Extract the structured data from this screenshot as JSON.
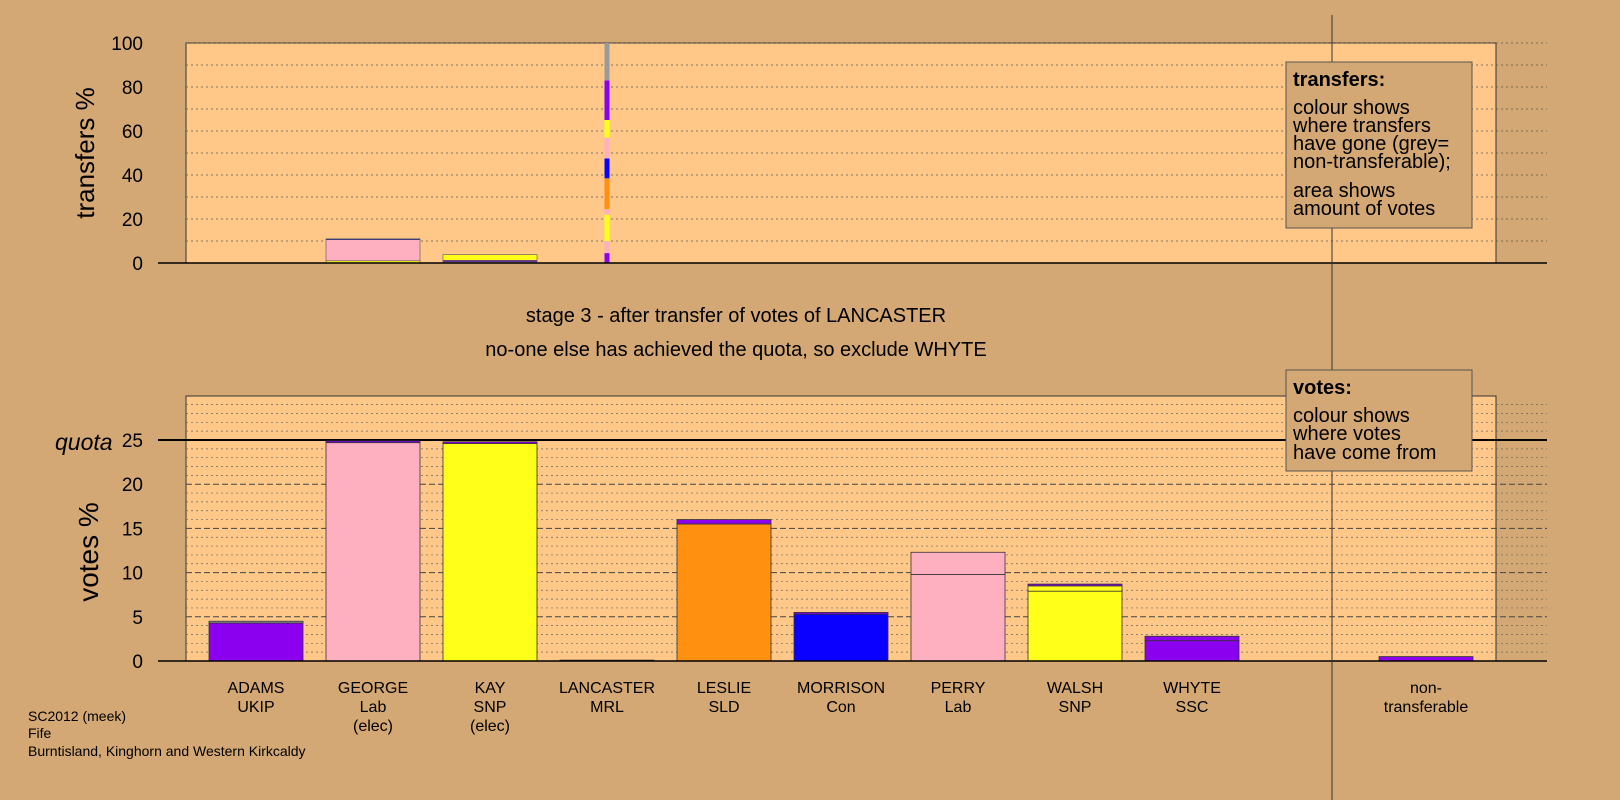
{
  "chart_data": {
    "type": "bar",
    "stage_line1": "stage 3 - after transfer of votes of LANCASTER",
    "stage_line2": "no-one else has achieved the quota, so exclude WHYTE",
    "top_panel": {
      "ylabel": "transfers %",
      "ylim": [
        0,
        100
      ],
      "yticks": [
        0,
        20,
        40,
        60,
        80,
        100
      ],
      "legend_title": "transfers:",
      "legend_lines_a": [
        "colour shows",
        "where transfers",
        "have gone (grey=",
        "non-transferable);"
      ],
      "legend_lines_b": [
        "area shows",
        "amount of votes"
      ]
    },
    "bottom_panel": {
      "ylabel": "votes %",
      "ylim": [
        0,
        30
      ],
      "yticks": [
        0,
        5,
        10,
        15,
        20,
        25
      ],
      "quota_label": "quota",
      "quota": 25,
      "legend_title": "votes:",
      "legend_lines": [
        "colour shows",
        "where votes",
        "have come from"
      ]
    },
    "candidates": [
      {
        "name": "ADAMS",
        "party": "UKIP",
        "note": "",
        "color": "#8b00ee",
        "segments": [
          {
            "value": 4.3,
            "color": "#8b00ee"
          },
          {
            "value": 0.2,
            "color": "#9a9a9a"
          }
        ],
        "transfer_in": 0
      },
      {
        "name": "GEORGE",
        "party": "Lab",
        "note": "(elec)",
        "color": "#ffb0c0",
        "segments": [
          {
            "value": 24.7,
            "color": "#ffb0c0"
          },
          {
            "value": 0.2,
            "color": "#8b00ee"
          }
        ],
        "transfer_in": 0
      },
      {
        "name": "KAY",
        "party": "SNP",
        "note": "(elec)",
        "color": "#ffff1a",
        "segments": [
          {
            "value": 24.6,
            "color": "#ffff1a"
          },
          {
            "value": 0.2,
            "color": "#8b00ee"
          }
        ],
        "transfer_in": 0
      },
      {
        "name": "LANCASTER",
        "party": "MRL",
        "note": "",
        "color": "#8b00ee",
        "segments": [
          {
            "value": 0.1,
            "color": "#8b00ee"
          }
        ],
        "transfer_in": 0
      },
      {
        "name": "LESLIE",
        "party": "SLD",
        "note": "",
        "color": "#ff9010",
        "segments": [
          {
            "value": 15.5,
            "color": "#ff9010"
          },
          {
            "value": 0.5,
            "color": "#8b00ee"
          }
        ],
        "transfer_in": 0.5
      },
      {
        "name": "MORRISON",
        "party": "Con",
        "note": "",
        "color": "#0a00ff",
        "segments": [
          {
            "value": 5.3,
            "color": "#0a00ff"
          },
          {
            "value": 0.2,
            "color": "#8b00ee"
          }
        ],
        "transfer_in": 0.2
      },
      {
        "name": "PERRY",
        "party": "Lab",
        "note": "",
        "color": "#ffb0c0",
        "segments": [
          {
            "value": 9.8,
            "color": "#ffb0c0"
          },
          {
            "value": 2.5,
            "color": "#ffb0c0"
          }
        ],
        "transfer_in": 0
      },
      {
        "name": "WALSH",
        "party": "SNP",
        "note": "",
        "color": "#ffff1a",
        "segments": [
          {
            "value": 7.9,
            "color": "#ffff1a"
          },
          {
            "value": 0.6,
            "color": "#ffff1a"
          },
          {
            "value": 0.2,
            "color": "#8b00ee"
          }
        ],
        "transfer_in": 0.2
      },
      {
        "name": "WHYTE",
        "party": "SSC",
        "note": "",
        "color": "#8b00ee",
        "segments": [
          {
            "value": 2.3,
            "color": "#8b00ee"
          },
          {
            "value": 0.5,
            "color": "#8b00ee"
          }
        ],
        "transfer_in": 0.5
      }
    ],
    "nontransferable": {
      "line1": "non-",
      "line2": "transferable",
      "value": 0.5
    },
    "transfers": [
      {
        "from": "GEORGE",
        "width": "wide",
        "segments": [
          {
            "value": 1.0,
            "color": "#ffff1a"
          },
          {
            "value": 9.6,
            "color": "#ffb0c0"
          },
          {
            "value": 0.4,
            "color": "#0a00ff"
          }
        ]
      },
      {
        "from": "KAY",
        "width": "wide",
        "segments": [
          {
            "value": 0.6,
            "color": "#9a9a9a"
          },
          {
            "value": 0.6,
            "color": "#8b00ee"
          },
          {
            "value": 2.6,
            "color": "#ffff1a"
          }
        ]
      },
      {
        "from": "LANCASTER",
        "width": "narrow",
        "segments": [
          {
            "value": 4.5,
            "color": "#8b00ee"
          },
          {
            "value": 5.5,
            "color": "#ffb0c0"
          },
          {
            "value": 12.0,
            "color": "#ffff1a"
          },
          {
            "value": 2.5,
            "color": "#ffb0c0"
          },
          {
            "value": 14.0,
            "color": "#ff9010"
          },
          {
            "value": 9.0,
            "color": "#0a00ff"
          },
          {
            "value": 9.5,
            "color": "#ffb0c0"
          },
          {
            "value": 8.0,
            "color": "#ffff1a"
          },
          {
            "value": 18.0,
            "color": "#8b00ee"
          },
          {
            "value": 17.0,
            "color": "#9a9a9a"
          }
        ]
      }
    ],
    "footer": [
      "SC2012 (meek)",
      "Fife",
      "Burntisland, Kinghorn and Western Kirkcaldy"
    ],
    "colors": {
      "background": "#d4a874",
      "plot_bg": "#ffc888"
    }
  }
}
